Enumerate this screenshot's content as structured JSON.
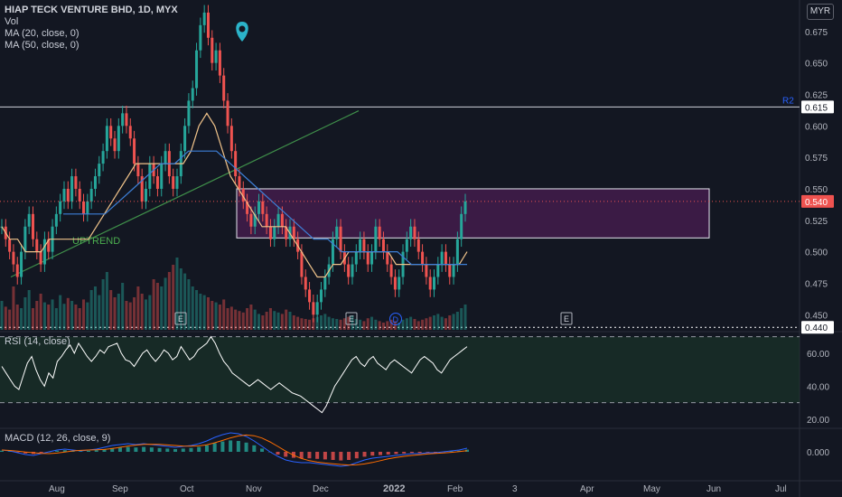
{
  "header": {
    "title": "HIAP TECK VENTURE BHD, 1D, MYX",
    "vol_label": "Vol",
    "ma20_label": "MA (20, close, 0)",
    "ma50_label": "MA (50, close, 0)",
    "currency": "MYR"
  },
  "annotations": {
    "uptrend": "UPTREND",
    "r2": "R2",
    "event_e": "E",
    "event_d": "D"
  },
  "colors": {
    "background": "#131722",
    "up": "#26a69a",
    "down": "#ef5350",
    "ma20": "#f0c38a",
    "ma50": "#3d7fd6",
    "box_fill": "#4a1e52",
    "trendline": "#3f8f4a",
    "rsi": "#ffffff",
    "pin": "#2bb3c9"
  },
  "chart_data": [
    {
      "type": "candlestick",
      "title": "HIAP TECK VENTURE BHD, 1D, MYX",
      "x_tick_labels": [
        "Aug",
        "Sep",
        "Oct",
        "Nov",
        "Dec",
        "2022",
        "Feb",
        "3",
        "Apr",
        "May",
        "Jun",
        "Jul"
      ],
      "y_tick_labels": [
        "0.675",
        "0.650",
        "0.625",
        "0.600",
        "0.575",
        "0.550",
        "0.525",
        "0.500",
        "0.475",
        "0.450"
      ],
      "ylim": [
        0.438,
        0.7
      ],
      "price_levels": [
        {
          "label": "R2",
          "value": 0.615
        },
        {
          "label": "",
          "value": 0.44
        }
      ],
      "last_price": 0.54,
      "close_series": [
        0.52,
        0.51,
        0.5,
        0.49,
        0.48,
        0.5,
        0.52,
        0.53,
        0.51,
        0.5,
        0.49,
        0.51,
        0.5,
        0.52,
        0.53,
        0.54,
        0.55,
        0.54,
        0.56,
        0.55,
        0.54,
        0.53,
        0.54,
        0.55,
        0.56,
        0.57,
        0.58,
        0.6,
        0.59,
        0.58,
        0.6,
        0.61,
        0.6,
        0.59,
        0.57,
        0.56,
        0.54,
        0.55,
        0.57,
        0.56,
        0.55,
        0.57,
        0.58,
        0.56,
        0.55,
        0.56,
        0.58,
        0.6,
        0.62,
        0.63,
        0.66,
        0.68,
        0.69,
        0.67,
        0.65,
        0.66,
        0.64,
        0.62,
        0.6,
        0.58,
        0.56,
        0.55,
        0.54,
        0.53,
        0.52,
        0.53,
        0.54,
        0.53,
        0.52,
        0.51,
        0.52,
        0.53,
        0.52,
        0.51,
        0.52,
        0.51,
        0.5,
        0.48,
        0.47,
        0.46,
        0.45,
        0.46,
        0.47,
        0.48,
        0.49,
        0.51,
        0.52,
        0.5,
        0.49,
        0.48,
        0.49,
        0.5,
        0.51,
        0.5,
        0.49,
        0.5,
        0.52,
        0.51,
        0.5,
        0.49,
        0.48,
        0.47,
        0.48,
        0.5,
        0.51,
        0.52,
        0.51,
        0.5,
        0.49,
        0.48,
        0.47,
        0.48,
        0.49,
        0.5,
        0.49,
        0.48,
        0.49,
        0.51,
        0.53,
        0.54
      ],
      "ma20": [
        0.52,
        0.51,
        0.51,
        0.5,
        0.5,
        0.5,
        0.51,
        0.51,
        0.51,
        0.51,
        0.51,
        0.51,
        0.52,
        0.53,
        0.54,
        0.55,
        0.56,
        0.57,
        0.57,
        0.57,
        0.57,
        0.57,
        0.57,
        0.57,
        0.58,
        0.6,
        0.61,
        0.6,
        0.58,
        0.56,
        0.55,
        0.54,
        0.53,
        0.52,
        0.52,
        0.52,
        0.52,
        0.51,
        0.5,
        0.49,
        0.48,
        0.48,
        0.49,
        0.49,
        0.5,
        0.5,
        0.5,
        0.5,
        0.5,
        0.5,
        0.49,
        0.49,
        0.49,
        0.49,
        0.49,
        0.49,
        0.49,
        0.49,
        0.49,
        0.5
      ],
      "ma50": [
        0.53,
        0.53,
        0.53,
        0.53,
        0.54,
        0.55,
        0.56,
        0.57,
        0.57,
        0.58,
        0.58,
        0.58,
        0.57,
        0.56,
        0.55,
        0.54,
        0.53,
        0.52,
        0.51,
        0.51,
        0.5,
        0.5,
        0.5,
        0.5,
        0.5,
        0.49,
        0.49,
        0.49,
        0.49,
        0.49
      ],
      "volume": [
        40,
        32,
        28,
        60,
        35,
        30,
        45,
        55,
        30,
        40,
        50,
        38,
        35,
        42,
        30,
        48,
        36,
        44,
        40,
        35,
        30,
        42,
        38,
        55,
        60,
        48,
        70,
        80,
        55,
        45,
        50,
        65,
        40,
        38,
        45,
        60,
        50,
        42,
        48,
        70,
        65,
        60,
        72,
        80,
        90,
        100,
        85,
        78,
        70,
        60,
        55,
        50,
        48,
        45,
        40,
        38,
        35,
        42,
        30,
        32,
        28,
        26,
        24,
        30,
        35,
        28,
        22,
        20,
        25,
        30,
        26,
        24,
        22,
        28,
        25,
        20,
        18,
        16,
        15,
        14,
        16,
        18,
        20,
        22,
        18,
        16,
        15,
        14,
        16,
        18,
        20,
        15,
        14,
        12,
        16,
        18,
        14,
        12,
        10,
        12,
        14,
        12,
        10,
        14,
        16,
        18,
        15,
        12,
        14,
        16,
        18,
        20,
        22,
        18,
        16,
        20,
        22,
        25,
        30,
        35
      ],
      "rsi": [
        52,
        48,
        44,
        40,
        38,
        46,
        54,
        58,
        50,
        44,
        40,
        48,
        45,
        55,
        58,
        62,
        65,
        60,
        66,
        62,
        58,
        55,
        58,
        62,
        60,
        64,
        65,
        66,
        60,
        56,
        55,
        52,
        56,
        60,
        62,
        58,
        55,
        58,
        62,
        60,
        56,
        58,
        64,
        60,
        56,
        58,
        62,
        64,
        66,
        70,
        66,
        60,
        55,
        52,
        48,
        46,
        44,
        42,
        40,
        42,
        44,
        42,
        40,
        38,
        40,
        42,
        40,
        38,
        36,
        35,
        34,
        32,
        30,
        28,
        26,
        24,
        28,
        34,
        40,
        44,
        48,
        52,
        56,
        58,
        54,
        52,
        56,
        58,
        54,
        52,
        50,
        54,
        56,
        54,
        52,
        50,
        48,
        52,
        56,
        58,
        56,
        54,
        50,
        48,
        52,
        56,
        58,
        60,
        62,
        64
      ],
      "rsi_ticks": [
        "60.00",
        "40.00",
        "20.00"
      ],
      "macd": [
        0.002,
        0.001,
        -0.001,
        -0.003,
        -0.004,
        -0.002,
        0.0,
        0.002,
        0.003,
        0.002,
        0.001,
        0.002,
        0.003,
        0.005,
        0.007,
        0.008,
        0.009,
        0.008,
        0.009,
        0.008,
        0.007,
        0.006,
        0.005,
        0.006,
        0.007,
        0.009,
        0.012,
        0.016,
        0.019,
        0.021,
        0.02,
        0.017,
        0.012,
        0.006,
        0.0,
        -0.005,
        -0.009,
        -0.011,
        -0.012,
        -0.012,
        -0.013,
        -0.014,
        -0.015,
        -0.016,
        -0.015,
        -0.012,
        -0.009,
        -0.007,
        -0.006,
        -0.005,
        -0.004,
        -0.003,
        -0.002,
        -0.002,
        -0.001,
        -0.001,
        0.0,
        0.001,
        0.002,
        0.004
      ],
      "macd_ticks": [
        "0.000"
      ]
    }
  ],
  "legends": {
    "rsi": "RSI (14, close)",
    "macd": "MACD (12, 26, close, 9)"
  }
}
